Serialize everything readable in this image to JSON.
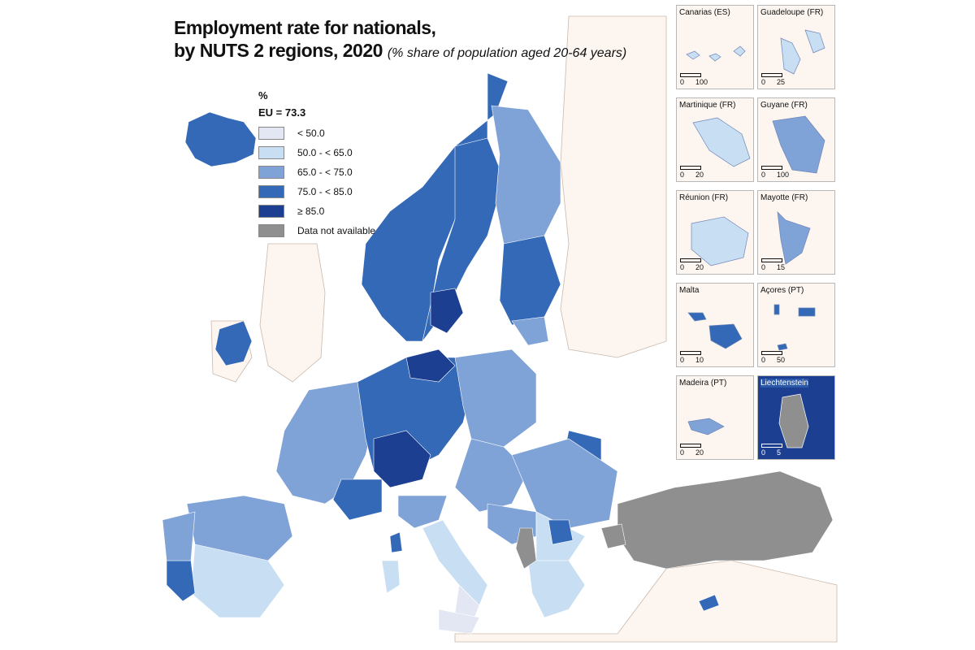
{
  "title": {
    "line1": "Employment rate for nationals,",
    "line2": "by NUTS 2 regions, 2020",
    "subtitle": "(% share of population aged 20-64 years)"
  },
  "legend": {
    "unit": "%",
    "eu_average": "EU = 73.3",
    "classes": [
      {
        "label": "< 50.0",
        "color": "#e3e6f3"
      },
      {
        "label": "50.0 - < 65.0",
        "color": "#c7def3"
      },
      {
        "label": "65.0 - < 75.0",
        "color": "#7fa2d7"
      },
      {
        "label": "75.0 - < 85.0",
        "color": "#3469b7"
      },
      {
        "label": "≥ 85.0",
        "color": "#1c3f91"
      },
      {
        "label": "Data not available",
        "color": "#8f8f8f"
      }
    ]
  },
  "colors": {
    "sea": "#ffffff",
    "non_eu_land": "#fdf5ef",
    "border": "#ffffff"
  },
  "insets": [
    {
      "title": "Canarias (ES)",
      "scale": [
        "0",
        "100"
      ]
    },
    {
      "title": "Guadeloupe (FR)",
      "scale": [
        "0",
        "25"
      ]
    },
    {
      "title": "Martinique (FR)",
      "scale": [
        "0",
        "20"
      ]
    },
    {
      "title": "Guyane (FR)",
      "scale": [
        "0",
        "100"
      ]
    },
    {
      "title": "Réunion (FR)",
      "scale": [
        "0",
        "20"
      ]
    },
    {
      "title": "Mayotte (FR)",
      "scale": [
        "0",
        "15"
      ]
    },
    {
      "title": "Malta",
      "scale": [
        "0",
        "10"
      ]
    },
    {
      "title": "Açores (PT)",
      "scale": [
        "0",
        "50"
      ]
    },
    {
      "title": "Madeira (PT)",
      "scale": [
        "0",
        "20"
      ]
    },
    {
      "title": "Liechtenstein",
      "scale": [
        "0",
        "5"
      ]
    }
  ]
}
